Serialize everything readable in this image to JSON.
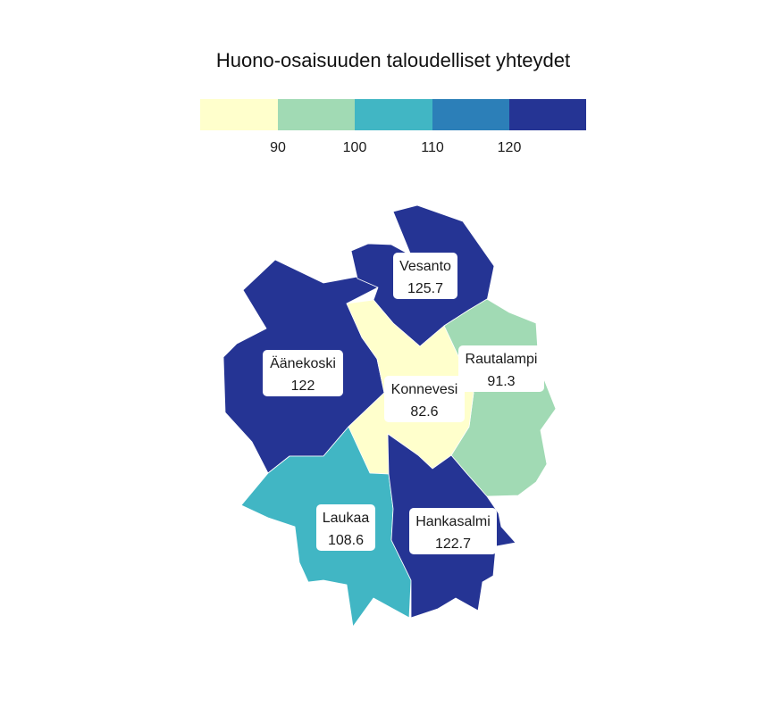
{
  "title": "Huono-osaisuuden taloudelliset yhteydet",
  "legend": {
    "bins": [
      {
        "from": null,
        "to": 90,
        "color": "#ffffcc"
      },
      {
        "from": 90,
        "to": 100,
        "color": "#a1dab4"
      },
      {
        "from": 100,
        "to": 110,
        "color": "#41b6c4"
      },
      {
        "from": 110,
        "to": 120,
        "color": "#2c7fb8"
      },
      {
        "from": 120,
        "to": null,
        "color": "#253494"
      }
    ],
    "ticks": [
      "90",
      "100",
      "110",
      "120"
    ]
  },
  "regions": [
    {
      "id": "vesanto",
      "name": "Vesanto",
      "value": "125.7",
      "color": "#253494"
    },
    {
      "id": "aanekoski",
      "name": "Äänekoski",
      "value": "122",
      "color": "#253494"
    },
    {
      "id": "rautalampi",
      "name": "Rautalampi",
      "value": "91.3",
      "color": "#a1dab4"
    },
    {
      "id": "konnevesi",
      "name": "Konnevesi",
      "value": "82.6",
      "color": "#ffffcc"
    },
    {
      "id": "laukaa",
      "name": "Laukaa",
      "value": "108.6",
      "color": "#41b6c4"
    },
    {
      "id": "hankasalmi",
      "name": "Hankasalmi",
      "value": "122.7",
      "color": "#253494"
    }
  ]
}
